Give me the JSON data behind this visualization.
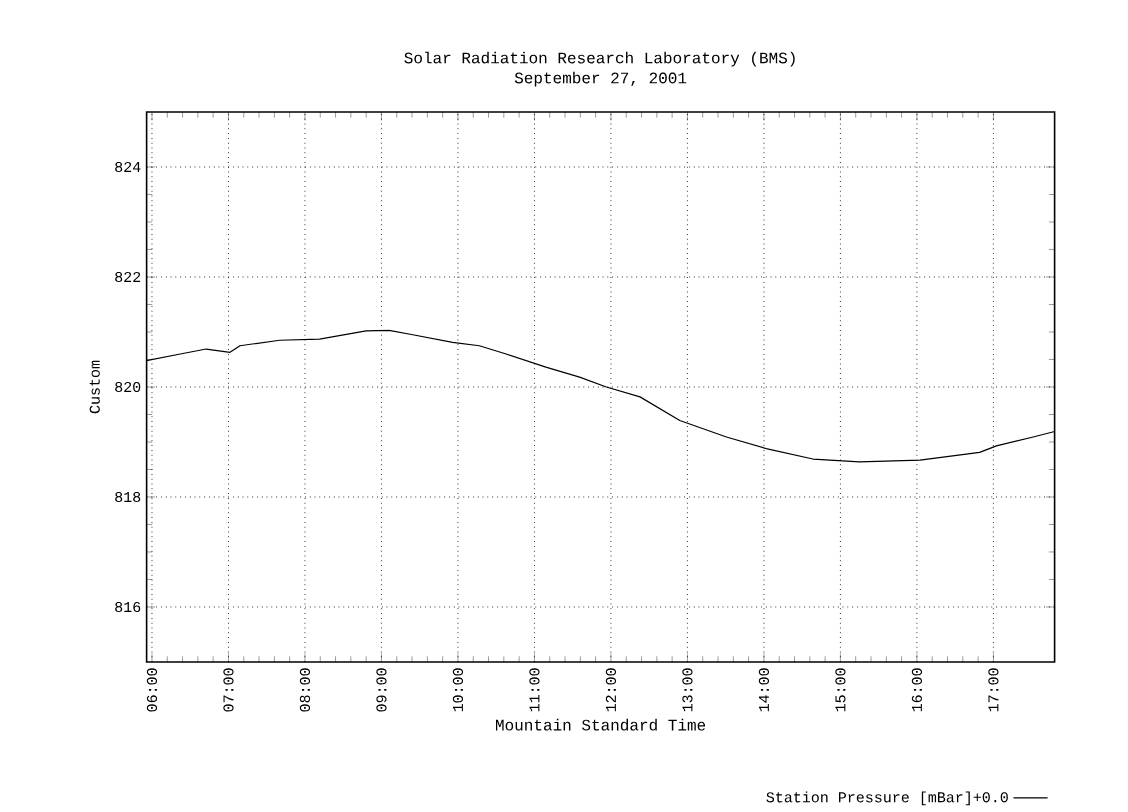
{
  "chart_data": {
    "type": "line",
    "title": "Solar Radiation Research Laboratory (BMS)",
    "subtitle": "September 27, 2001",
    "xlabel": "Mountain Standard Time",
    "ylabel": "Custom",
    "xlim": [
      5.93,
      17.8
    ],
    "ylim": [
      815,
      825
    ],
    "xticks": [
      {
        "value": 6,
        "label": "06:00"
      },
      {
        "value": 7,
        "label": "07:00"
      },
      {
        "value": 8,
        "label": "08:00"
      },
      {
        "value": 9,
        "label": "09:00"
      },
      {
        "value": 10,
        "label": "10:00"
      },
      {
        "value": 11,
        "label": "11:00"
      },
      {
        "value": 12,
        "label": "12:00"
      },
      {
        "value": 13,
        "label": "13:00"
      },
      {
        "value": 14,
        "label": "14:00"
      },
      {
        "value": 15,
        "label": "15:00"
      },
      {
        "value": 16,
        "label": "16:00"
      },
      {
        "value": 17,
        "label": "17:00"
      }
    ],
    "yticks": [
      816,
      818,
      820,
      822,
      824
    ],
    "grid": true,
    "legend": "bottom right",
    "marker": "none",
    "line_style": "solid",
    "series": [
      {
        "name": "Station Pressure [mBar]+0.0",
        "color": "#000000",
        "x": [
          5.93,
          6.37,
          6.71,
          7.02,
          7.15,
          7.67,
          8.19,
          8.8,
          9.1,
          9.41,
          9.93,
          10.28,
          10.63,
          11.15,
          11.59,
          11.94,
          12.38,
          12.9,
          13.51,
          14.03,
          14.64,
          15.25,
          16.04,
          16.82,
          17.04,
          17.52,
          17.8
        ],
        "values": [
          820.48,
          820.6,
          820.69,
          820.63,
          820.75,
          820.85,
          820.87,
          821.02,
          821.03,
          820.95,
          820.81,
          820.75,
          820.6,
          820.36,
          820.18,
          820.0,
          819.82,
          819.39,
          819.09,
          818.88,
          818.69,
          818.64,
          818.67,
          818.81,
          818.93,
          819.09,
          819.19
        ]
      }
    ]
  }
}
